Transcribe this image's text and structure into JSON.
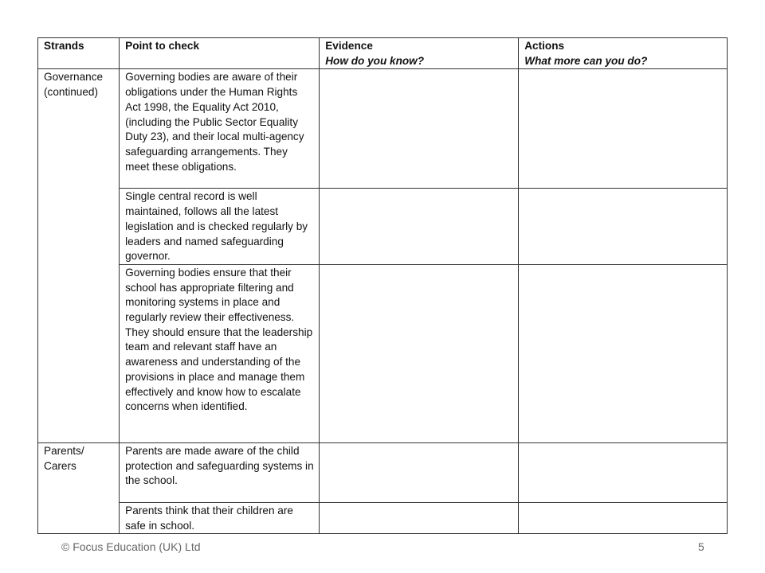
{
  "table": {
    "headers": [
      {
        "title": "Strands",
        "subtitle": ""
      },
      {
        "title": "Point to check",
        "subtitle": ""
      },
      {
        "title": "Evidence",
        "subtitle": "How do you know?"
      },
      {
        "title": "Actions",
        "subtitle": "What more can you do?"
      }
    ],
    "strands": [
      "Governance (continued)",
      "Parents/ Carers"
    ],
    "points": [
      "Governing bodies are aware of their obligations under the Human Rights Act 1998, the Equality Act 2010, (including the Public Sector Equality Duty 23), and their local multi-agency safeguarding arrangements. They meet these obligations.",
      "Single central record is well maintained, follows all the latest legislation and is checked regularly by leaders and named safeguarding governor.",
      "Governing bodies ensure that their school has appropriate filtering and monitoring systems in place and regularly review their effectiveness. They should ensure that the leadership team and relevant staff have an awareness and understanding of the provisions in place and manage them effectively and know how to escalate concerns when identified.",
      "Parents are made aware of the child protection and safeguarding systems in the school.",
      "Parents think that their children are safe in school."
    ]
  },
  "footer": {
    "copyright": "© Focus Education (UK) Ltd",
    "page_number": "5"
  }
}
